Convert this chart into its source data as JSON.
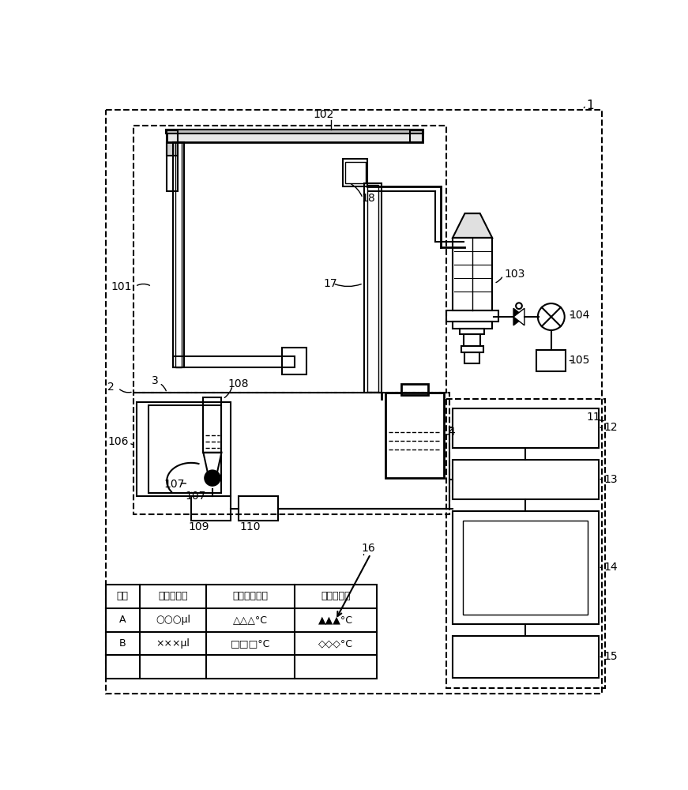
{
  "bg_color": "#ffffff",
  "line_color": "#000000",
  "table_header": [
    "试剂",
    "试剂分注量",
    "液体保冷温度",
    "反应部温度"
  ],
  "table_row1": [
    "A",
    "○○○μl",
    "△△△°C",
    "▲▲▲°C"
  ],
  "table_row2": [
    "B",
    "×××μl",
    "□□□°C",
    "◇◇◇°C"
  ]
}
